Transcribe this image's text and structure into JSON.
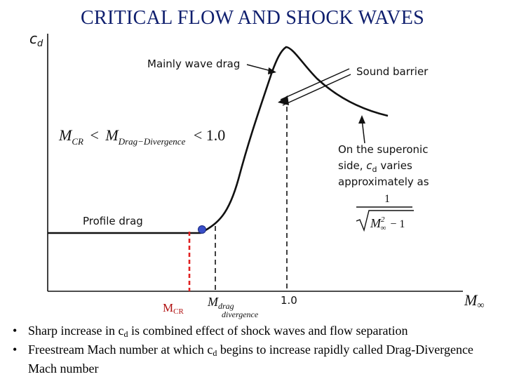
{
  "title": "CRITICAL FLOW AND SHOCK WAVES",
  "axes": {
    "y_label": "c",
    "y_label_sub": "d",
    "x_label": "M",
    "x_label_sub": "∞",
    "tick_one": "1.0"
  },
  "labels": {
    "mainly_wave_drag": "Mainly wave drag",
    "sound_barrier": "Sound barrier",
    "profile_drag": "Profile drag",
    "supersonic_line1": "On the superonic",
    "supersonic_line2_pre": "side,",
    "supersonic_line2_var": "c",
    "supersonic_line2_sub": "d",
    "supersonic_line2_post": "varies",
    "supersonic_line3": "approximately as",
    "formula_numerator": "1",
    "formula_base": "M",
    "formula_sup": "2",
    "formula_sub": "∞",
    "formula_minus": "− 1",
    "mcr": "M",
    "mcr_sub": "CR",
    "mdrag": "M",
    "mdrag_sub": "drag",
    "mdrag_sub2": "divergence"
  },
  "inequality": {
    "m1": "M",
    "m1_sub": "CR",
    "op": "<",
    "m2": "M",
    "m2_sub": "Drag−Divergence",
    "rhs": "< 1.0"
  },
  "colors": {
    "title": "#0f1f6e",
    "mcr_marker": "#3a4fc8",
    "mcr_dashed": "#e02020"
  },
  "bullets": [
    {
      "pre": "Sharp increase in c",
      "sub": "d",
      "post": " is combined effect of shock waves and flow separation"
    },
    {
      "pre": "Freestream Mach number at which c",
      "sub": "d",
      "post": " begins to increase rapidly called Drag-Divergence Mach number"
    }
  ]
}
